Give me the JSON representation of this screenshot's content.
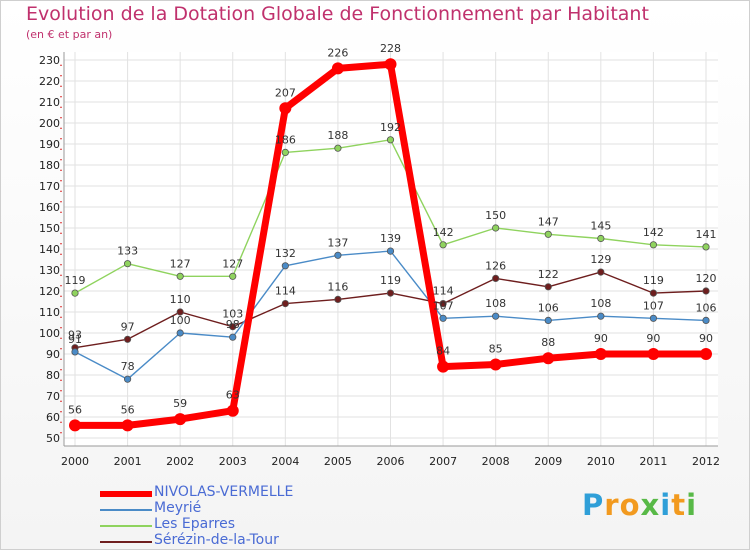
{
  "chart_data": {
    "type": "line",
    "title": "Evolution de la Dotation Globale de Fonctionnement par Habitant",
    "subtitle": "(en € et par an)",
    "xlabel": "",
    "ylabel": "",
    "ylim": [
      50,
      230
    ],
    "yticks": [
      50,
      60,
      70,
      80,
      90,
      100,
      110,
      120,
      130,
      140,
      150,
      160,
      170,
      180,
      190,
      200,
      210,
      220,
      230
    ],
    "categories": [
      "2000",
      "2001",
      "2002",
      "2003",
      "2004",
      "2005",
      "2006",
      "2007",
      "2008",
      "2009",
      "2010",
      "2011",
      "2012"
    ],
    "grid": true,
    "series": [
      {
        "name": "Sérézin-de-la-Tour",
        "color": "#6e1e1e",
        "values": [
          93,
          97,
          110,
          103,
          114,
          116,
          119,
          114,
          126,
          122,
          129,
          119,
          120
        ]
      },
      {
        "name": "Meyrié",
        "color": "#4a8bc7",
        "values": [
          91,
          78,
          100,
          98,
          132,
          137,
          139,
          107,
          108,
          106,
          108,
          107,
          106
        ]
      },
      {
        "name": "Les Eparres",
        "color": "#8fd35e",
        "values": [
          119,
          133,
          127,
          127,
          186,
          188,
          192,
          142,
          150,
          147,
          145,
          142,
          141
        ]
      },
      {
        "name": "NIVOLAS-VERMELLE",
        "color": "#ff0000",
        "values": [
          56,
          56,
          59,
          63,
          207,
          226,
          228,
          84,
          85,
          88,
          90,
          90,
          90
        ]
      }
    ],
    "legend": [
      {
        "name": "NIVOLAS-VERMELLE",
        "color": "#ff0000"
      },
      {
        "name": "Meyrié",
        "color": "#4a8bc7"
      },
      {
        "name": "Les Eparres",
        "color": "#8fd35e"
      },
      {
        "name": "Sérézin-de-la-Tour",
        "color": "#6e1e1e"
      }
    ],
    "legend_position": "bottom-left"
  },
  "brand": {
    "letters": [
      "P",
      "r",
      "o",
      "x",
      "i",
      "t",
      "i"
    ],
    "colors": [
      "#2f9fd8",
      "#f29a1f",
      "#f29a1f",
      "#58b947",
      "#2f9fd8",
      "#f29a1f",
      "#58b947"
    ]
  }
}
